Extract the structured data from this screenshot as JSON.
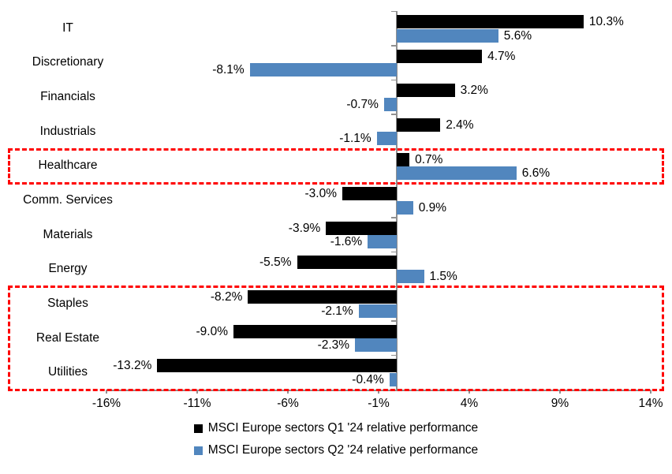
{
  "chart_data": {
    "type": "bar",
    "orientation": "horizontal",
    "title": "",
    "categories": [
      "IT",
      "Discretionary",
      "Financials",
      "Industrials",
      "Healthcare",
      "Comm. Services",
      "Materials",
      "Energy",
      "Staples",
      "Real Estate",
      "Utilities"
    ],
    "series": [
      {
        "name": "MSCI Europe sectors Q1 '24 relative performance",
        "color": "#000000",
        "values": [
          10.3,
          4.7,
          3.2,
          2.4,
          0.7,
          -3.0,
          -3.9,
          -5.5,
          -8.2,
          -9.0,
          -13.2
        ],
        "labels": [
          "10.3%",
          "4.7%",
          "3.2%",
          "2.4%",
          "0.7%",
          "-3.0%",
          "-3.9%",
          "-5.5%",
          "-8.2%",
          "-9.0%",
          "-13.2%"
        ]
      },
      {
        "name": "MSCI Europe sectors Q2 '24 relative performance",
        "color": "#5186BE",
        "values": [
          5.6,
          -8.1,
          -0.7,
          -1.1,
          6.6,
          0.9,
          -1.6,
          1.5,
          -2.1,
          -2.3,
          -0.4
        ],
        "labels": [
          "5.6%",
          "-8.1%",
          "-0.7%",
          "-1.1%",
          "6.6%",
          "0.9%",
          "-1.6%",
          "1.5%",
          "-2.1%",
          "-2.3%",
          "-0.4%"
        ]
      }
    ],
    "xlim": [
      -16,
      14
    ],
    "x_ticks": [
      {
        "value": -16,
        "label": "-16%"
      },
      {
        "value": -11,
        "label": "-11%"
      },
      {
        "value": -6,
        "label": "-6%"
      },
      {
        "value": -1,
        "label": "-1%"
      },
      {
        "value": 4,
        "label": "4%"
      },
      {
        "value": 9,
        "label": "9%"
      },
      {
        "value": 14,
        "label": "14%"
      }
    ],
    "grid": false,
    "legend_position": "bottom",
    "axis_color": "#909090",
    "text_color": "#000000",
    "highlight_color": "#FF0000",
    "highlights": [
      {
        "name": "highlight-box-healthcare",
        "from_row": 4,
        "to_row": 4
      },
      {
        "name": "highlight-box-defensives",
        "from_row": 8,
        "to_row": 10
      }
    ]
  }
}
